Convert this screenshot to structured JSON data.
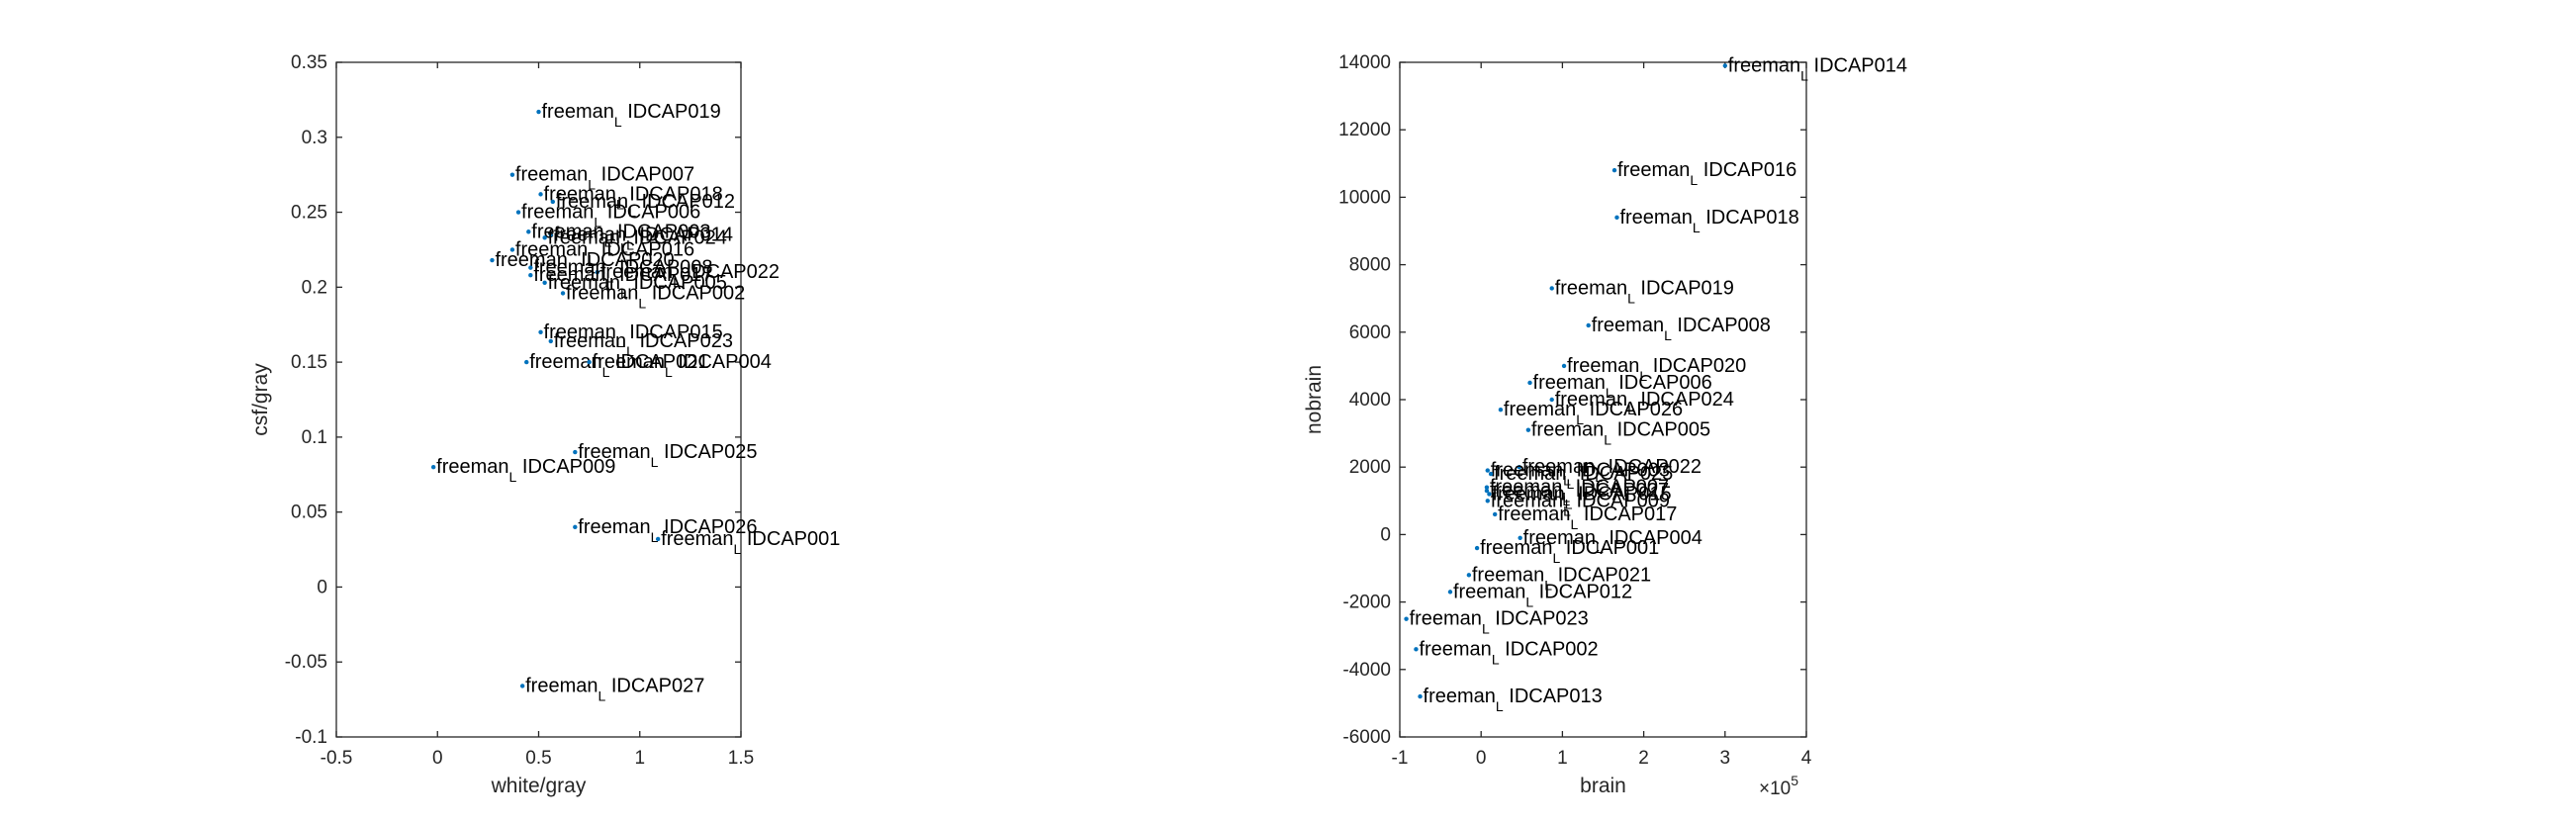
{
  "chart_data": [
    {
      "type": "scatter",
      "xlabel": "white/gray",
      "ylabel": "csf/gray",
      "xlim": [
        -0.5,
        1.5
      ],
      "ylim": [
        -0.1,
        0.35
      ],
      "xticks": [
        -0.5,
        0,
        0.5,
        1,
        1.5
      ],
      "xtick_labels": [
        "-0.5",
        "0",
        "0.5",
        "1",
        "1.5"
      ],
      "yticks": [
        -0.1,
        -0.05,
        0,
        0.05,
        0.1,
        0.15,
        0.2,
        0.25,
        0.3,
        0.35
      ],
      "ytick_labels": [
        "-0.1",
        "-0.05",
        "0",
        "0.05",
        "0.1",
        "0.15",
        "0.2",
        "0.25",
        "0.3",
        "0.35"
      ],
      "point_color": "#0072BD",
      "points": [
        {
          "x": 0.5,
          "y": 0.317,
          "label": "freeman",
          "sub": "L",
          "id": "IDCAP019"
        },
        {
          "x": 0.37,
          "y": 0.275,
          "label": "freeman",
          "sub": "L",
          "id": "IDCAP007"
        },
        {
          "x": 0.51,
          "y": 0.262,
          "label": "freeman",
          "sub": "L",
          "id": "IDCAP018"
        },
        {
          "x": 0.57,
          "y": 0.257,
          "label": "freeman",
          "sub": "L",
          "id": "IDCAP012"
        },
        {
          "x": 0.4,
          "y": 0.25,
          "label": "freeman",
          "sub": "L",
          "id": "IDCAP006"
        },
        {
          "x": 0.45,
          "y": 0.237,
          "label": "freeman",
          "sub": "L",
          "id": "IDCAP003"
        },
        {
          "x": 0.56,
          "y": 0.235,
          "label": "freeman",
          "sub": "L",
          "id": "IDCAP014"
        },
        {
          "x": 0.53,
          "y": 0.233,
          "label": "freeman",
          "sub": "L",
          "id": "IDCAP024"
        },
        {
          "x": 0.37,
          "y": 0.225,
          "label": "freeman",
          "sub": "L",
          "id": "IDCAP016"
        },
        {
          "x": 0.27,
          "y": 0.218,
          "label": "freeman",
          "sub": "L",
          "id": "IDCAP020"
        },
        {
          "x": 0.46,
          "y": 0.213,
          "label": "freeman",
          "sub": "L",
          "id": "IDCAP008"
        },
        {
          "x": 0.79,
          "y": 0.21,
          "label": "freeman",
          "sub": "L",
          "id": "IDCAP022"
        },
        {
          "x": 0.46,
          "y": 0.208,
          "label": "freeman",
          "sub": "L",
          "id": "IDCAP017"
        },
        {
          "x": 0.53,
          "y": 0.203,
          "label": "freeman",
          "sub": "L",
          "id": "IDCAP005"
        },
        {
          "x": 0.62,
          "y": 0.196,
          "label": "freeman",
          "sub": "L",
          "id": "IDCAP002"
        },
        {
          "x": 0.51,
          "y": 0.17,
          "label": "freeman",
          "sub": "L",
          "id": "IDCAP015"
        },
        {
          "x": 0.56,
          "y": 0.164,
          "label": "freeman",
          "sub": "L",
          "id": "IDCAP023"
        },
        {
          "x": 0.44,
          "y": 0.15,
          "label": "freeman",
          "sub": "L",
          "id": "IDCAP021"
        },
        {
          "x": 0.75,
          "y": 0.15,
          "label": "freeman",
          "sub": "L",
          "id": "IDCAP004"
        },
        {
          "x": 0.68,
          "y": 0.09,
          "label": "freeman",
          "sub": "L",
          "id": "IDCAP025"
        },
        {
          "x": -0.02,
          "y": 0.08,
          "label": "freeman",
          "sub": "L",
          "id": "IDCAP009"
        },
        {
          "x": 0.68,
          "y": 0.04,
          "label": "freeman",
          "sub": "L",
          "id": "IDCAP026"
        },
        {
          "x": 1.09,
          "y": 0.032,
          "label": "freeman",
          "sub": "L",
          "id": "IDCAP001"
        },
        {
          "x": 0.42,
          "y": -0.066,
          "label": "freeman",
          "sub": "L",
          "id": "IDCAP027"
        }
      ]
    },
    {
      "type": "scatter",
      "xlabel": "brain",
      "ylabel": "nobrain",
      "xlim": [
        -1,
        4
      ],
      "ylim": [
        -6000,
        14000
      ],
      "xticks": [
        -1,
        0,
        1,
        2,
        3,
        4
      ],
      "xtick_labels": [
        "-1",
        "0",
        "1",
        "2",
        "3",
        "4"
      ],
      "x_exponent_base": "×10",
      "x_exponent_power": "5",
      "yticks": [
        -6000,
        -4000,
        -2000,
        0,
        2000,
        4000,
        6000,
        8000,
        10000,
        12000,
        14000
      ],
      "ytick_labels": [
        "-6000",
        "-4000",
        "-2000",
        "0",
        "2000",
        "4000",
        "6000",
        "8000",
        "10000",
        "12000",
        "14000"
      ],
      "point_color": "#0072BD",
      "points": [
        {
          "x": 3.0,
          "y": 13900,
          "label": "freeman",
          "sub": "L",
          "id": "IDCAP014"
        },
        {
          "x": 1.64,
          "y": 10800,
          "label": "freeman",
          "sub": "L",
          "id": "IDCAP016"
        },
        {
          "x": 1.67,
          "y": 9400,
          "label": "freeman",
          "sub": "L",
          "id": "IDCAP018"
        },
        {
          "x": 0.87,
          "y": 7300,
          "label": "freeman",
          "sub": "L",
          "id": "IDCAP019"
        },
        {
          "x": 1.32,
          "y": 6200,
          "label": "freeman",
          "sub": "L",
          "id": "IDCAP008"
        },
        {
          "x": 1.02,
          "y": 5000,
          "label": "freeman",
          "sub": "L",
          "id": "IDCAP020"
        },
        {
          "x": 0.6,
          "y": 4500,
          "label": "freeman",
          "sub": "L",
          "id": "IDCAP006"
        },
        {
          "x": 0.87,
          "y": 4000,
          "label": "freeman",
          "sub": "L",
          "id": "IDCAP024"
        },
        {
          "x": 0.24,
          "y": 3700,
          "label": "freeman",
          "sub": "L",
          "id": "IDCAP026"
        },
        {
          "x": 0.58,
          "y": 3100,
          "label": "freeman",
          "sub": "L",
          "id": "IDCAP005"
        },
        {
          "x": 0.47,
          "y": 2000,
          "label": "freeman",
          "sub": "L",
          "id": "IDCAP022"
        },
        {
          "x": 0.08,
          "y": 1900,
          "label": "freeman",
          "sub": "L",
          "id": "IDCAP003"
        },
        {
          "x": 0.12,
          "y": 1800,
          "label": "freeman",
          "sub": "L",
          "id": "IDCAP025"
        },
        {
          "x": 0.07,
          "y": 1400,
          "label": "freeman",
          "sub": "L",
          "id": "IDCAP007"
        },
        {
          "x": 0.07,
          "y": 1300,
          "label": "freeman",
          "sub": "L",
          "id": "IDCAP027"
        },
        {
          "x": 0.1,
          "y": 1200,
          "label": "freeman",
          "sub": "L",
          "id": "IDCAP015"
        },
        {
          "x": 0.08,
          "y": 1000,
          "label": "freeman",
          "sub": "L",
          "id": "IDCAP009"
        },
        {
          "x": 0.17,
          "y": 600,
          "label": "freeman",
          "sub": "L",
          "id": "IDCAP017"
        },
        {
          "x": 0.48,
          "y": -100,
          "label": "freeman",
          "sub": "L",
          "id": "IDCAP004"
        },
        {
          "x": -0.05,
          "y": -400,
          "label": "freeman",
          "sub": "L",
          "id": "IDCAP001"
        },
        {
          "x": -0.15,
          "y": -1200,
          "label": "freeman",
          "sub": "L",
          "id": "IDCAP021"
        },
        {
          "x": -0.38,
          "y": -1700,
          "label": "freeman",
          "sub": "L",
          "id": "IDCAP012"
        },
        {
          "x": -0.92,
          "y": -2500,
          "label": "freeman",
          "sub": "L",
          "id": "IDCAP023"
        },
        {
          "x": -0.8,
          "y": -3400,
          "label": "freeman",
          "sub": "L",
          "id": "IDCAP002"
        },
        {
          "x": -0.75,
          "y": -4800,
          "label": "freeman",
          "sub": "L",
          "id": "IDCAP013"
        }
      ]
    }
  ]
}
